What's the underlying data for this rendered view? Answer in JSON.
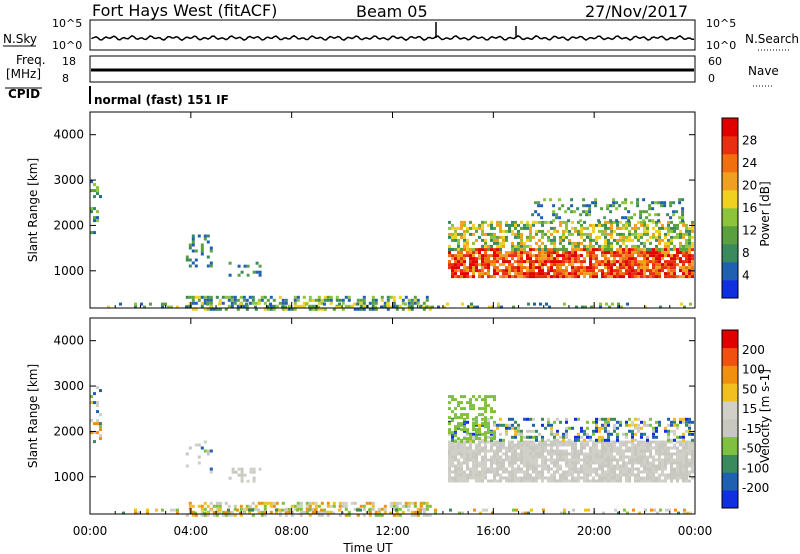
{
  "header": {
    "radar": "Fort Hays West (fitACF)",
    "beam": "Beam 05",
    "date": "27/Nov/2017"
  },
  "strips": {
    "nsky_label": "N.Sky",
    "freq_label_line1": "Freq.",
    "freq_label_line2": "[MHz]",
    "cpid_label": "CPID",
    "nsearch_label": "N.Search",
    "nave_label": "Nave",
    "noise_ticks": [
      "10^5",
      "10^0"
    ],
    "freq_ticks": [
      "18",
      "8"
    ],
    "nave_ticks": [
      "60",
      "0"
    ],
    "cpid_text": "normal (fast) 151 IF"
  },
  "colors": {
    "power": [
      "#1030e0",
      "#2060b0",
      "#3a8a5e",
      "#5aa040",
      "#8cc43c",
      "#f0d020",
      "#f0a020",
      "#f07010",
      "#e83010",
      "#e00000"
    ],
    "velocity": [
      "#e00000",
      "#f05010",
      "#f09010",
      "#f0c020",
      "#d0d0c8",
      "#c8c8c0",
      "#80c040",
      "#3a8a5e",
      "#2060b0",
      "#1030e0"
    ]
  },
  "chart_data": [
    {
      "type": "heatmap",
      "title": "Power",
      "ylabel": "Slant Range [km]",
      "xlabel": "",
      "y_ticks": [
        "1000",
        "2000",
        "3000",
        "4000"
      ],
      "ylim": [
        180,
        4500
      ],
      "xlim": [
        "00:00",
        "24:00"
      ],
      "colorbar": {
        "label": "Power [dB]",
        "ticks": [
          "4",
          "8",
          "12",
          "16",
          "20",
          "24",
          "28"
        ]
      }
    },
    {
      "type": "heatmap",
      "title": "Velocity",
      "ylabel": "Slant Range [km]",
      "xlabel": "Time UT",
      "x_ticks": [
        "00:00",
        "04:00",
        "08:00",
        "12:00",
        "16:00",
        "20:00",
        "00:00"
      ],
      "y_ticks": [
        "1000",
        "2000",
        "3000",
        "4000"
      ],
      "ylim": [
        180,
        4500
      ],
      "xlim": [
        "00:00",
        "24:00"
      ],
      "colorbar": {
        "label": "Velocity [m s-1]",
        "ticks": [
          "200",
          "100",
          "50",
          "15",
          "-15",
          "-50",
          "-100",
          "-200"
        ]
      }
    }
  ]
}
